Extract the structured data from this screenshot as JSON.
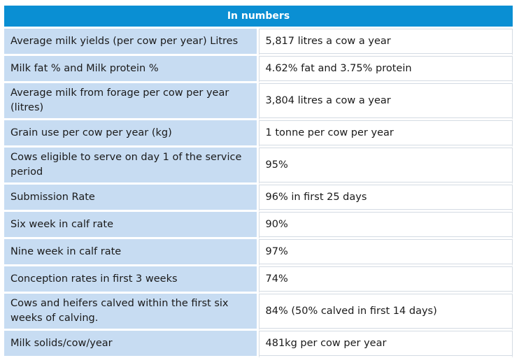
{
  "table": {
    "title": "In numbers",
    "rows": [
      {
        "label": "Average milk yields (per cow per year) Litres",
        "value": "5,817 litres a cow a year"
      },
      {
        "label": "Milk fat % and Milk protein %",
        "value": "4.62% fat and 3.75% protein"
      },
      {
        "label": "Average milk from forage per cow per year (litres)",
        "value": "3,804 litres a cow a year"
      },
      {
        "label": "Grain use per cow per year (kg)",
        "value": "1 tonne per cow per year"
      },
      {
        "label": "Cows eligible to serve on day 1 of the service period",
        "value": "95%"
      },
      {
        "label": "Submission Rate",
        "value": "96% in first 25 days"
      },
      {
        "label": "Six week in calf rate",
        "value": "90%"
      },
      {
        "label": "Nine week in calf rate",
        "value": "97%"
      },
      {
        "label": "Conception rates in first 3 weeks",
        "value": "74%"
      },
      {
        "label": "Cows and heifers calved within the first six weeks of calving.",
        "value": "84% (50% calved in first 14 days)"
      },
      {
        "label": "Milk solids/cow/year",
        "value": "481kg per cow per year"
      }
    ]
  },
  "colors": {
    "header_bg": "#0a8fd3",
    "label_bg": "#c7dcf2",
    "value_bg": "#ffffff"
  }
}
